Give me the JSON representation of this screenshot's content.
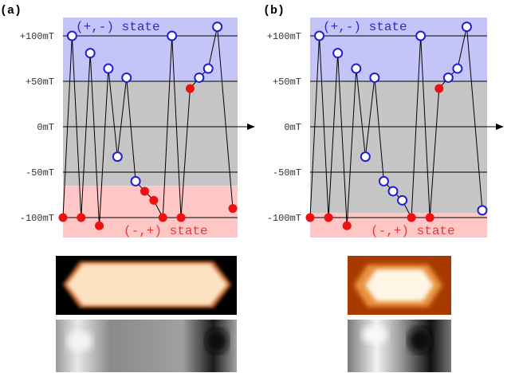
{
  "colors": {
    "plus_minus_band": "#c4c4f8",
    "neutral_band": "#c5c5c5",
    "minus_plus_band": "#ffc6c6",
    "open_marker_stroke": "#1e1ed2",
    "filled_marker": "#ee1111",
    "line": "#000000"
  },
  "chart_data": [
    {
      "type": "scatter",
      "panel_label": "(a)",
      "title": "",
      "xlabel": "",
      "ylabel": "",
      "y_ticks": [
        "+100mT",
        "+50mT",
        "0mT",
        "-50mT",
        "-100mT"
      ],
      "y_tick_values": [
        100,
        50,
        0,
        -50,
        -100
      ],
      "ylim": [
        -107,
        123
      ],
      "states": {
        "top": "(+,-)  state",
        "bottom": "(-,+)  state"
      },
      "bands": {
        "top_from": 50,
        "bottom_to": -65
      },
      "points": [
        {
          "y": -100,
          "filled": true
        },
        {
          "y": 100,
          "filled": false
        },
        {
          "y": -100,
          "filled": true
        },
        {
          "y": 81,
          "filled": false
        },
        {
          "y": -109,
          "filled": true
        },
        {
          "y": 64,
          "filled": false
        },
        {
          "y": -33,
          "filled": false
        },
        {
          "y": 54,
          "filled": false
        },
        {
          "y": -60,
          "filled": false
        },
        {
          "y": -71,
          "filled": true
        },
        {
          "y": -81,
          "filled": true
        },
        {
          "y": -100,
          "filled": true
        },
        {
          "y": 100,
          "filled": false
        },
        {
          "y": -100,
          "filled": true
        },
        {
          "y": 42,
          "filled": true
        },
        {
          "y": 54,
          "filled": false
        },
        {
          "y": 64,
          "filled": false
        },
        {
          "y": 110,
          "filled": false
        },
        {
          "y": -90,
          "filled": true
        }
      ]
    },
    {
      "type": "scatter",
      "panel_label": "(b)",
      "title": "",
      "xlabel": "",
      "ylabel": "",
      "y_ticks": [
        "+100mT",
        "+50mT",
        "0mT",
        "-50mT",
        "-100mT"
      ],
      "y_tick_values": [
        100,
        50,
        0,
        -50,
        -100
      ],
      "ylim": [
        -107,
        123
      ],
      "states": {
        "top": "(+,-)  state",
        "bottom": "(-,+)  state"
      },
      "bands": {
        "top_from": 50,
        "bottom_to": -95
      },
      "points": [
        {
          "y": -100,
          "filled": true
        },
        {
          "y": 100,
          "filled": false
        },
        {
          "y": -100,
          "filled": true
        },
        {
          "y": 81,
          "filled": false
        },
        {
          "y": -109,
          "filled": true
        },
        {
          "y": 64,
          "filled": false
        },
        {
          "y": -33,
          "filled": false
        },
        {
          "y": 54,
          "filled": false
        },
        {
          "y": -60,
          "filled": false
        },
        {
          "y": -71,
          "filled": false
        },
        {
          "y": -81,
          "filled": false
        },
        {
          "y": -100,
          "filled": true
        },
        {
          "y": 100,
          "filled": false
        },
        {
          "y": -100,
          "filled": true
        },
        {
          "y": 42,
          "filled": true
        },
        {
          "y": 54,
          "filled": false
        },
        {
          "y": 64,
          "filled": false
        },
        {
          "y": 110,
          "filled": false
        },
        {
          "y": -92,
          "filled": false
        }
      ]
    }
  ]
}
